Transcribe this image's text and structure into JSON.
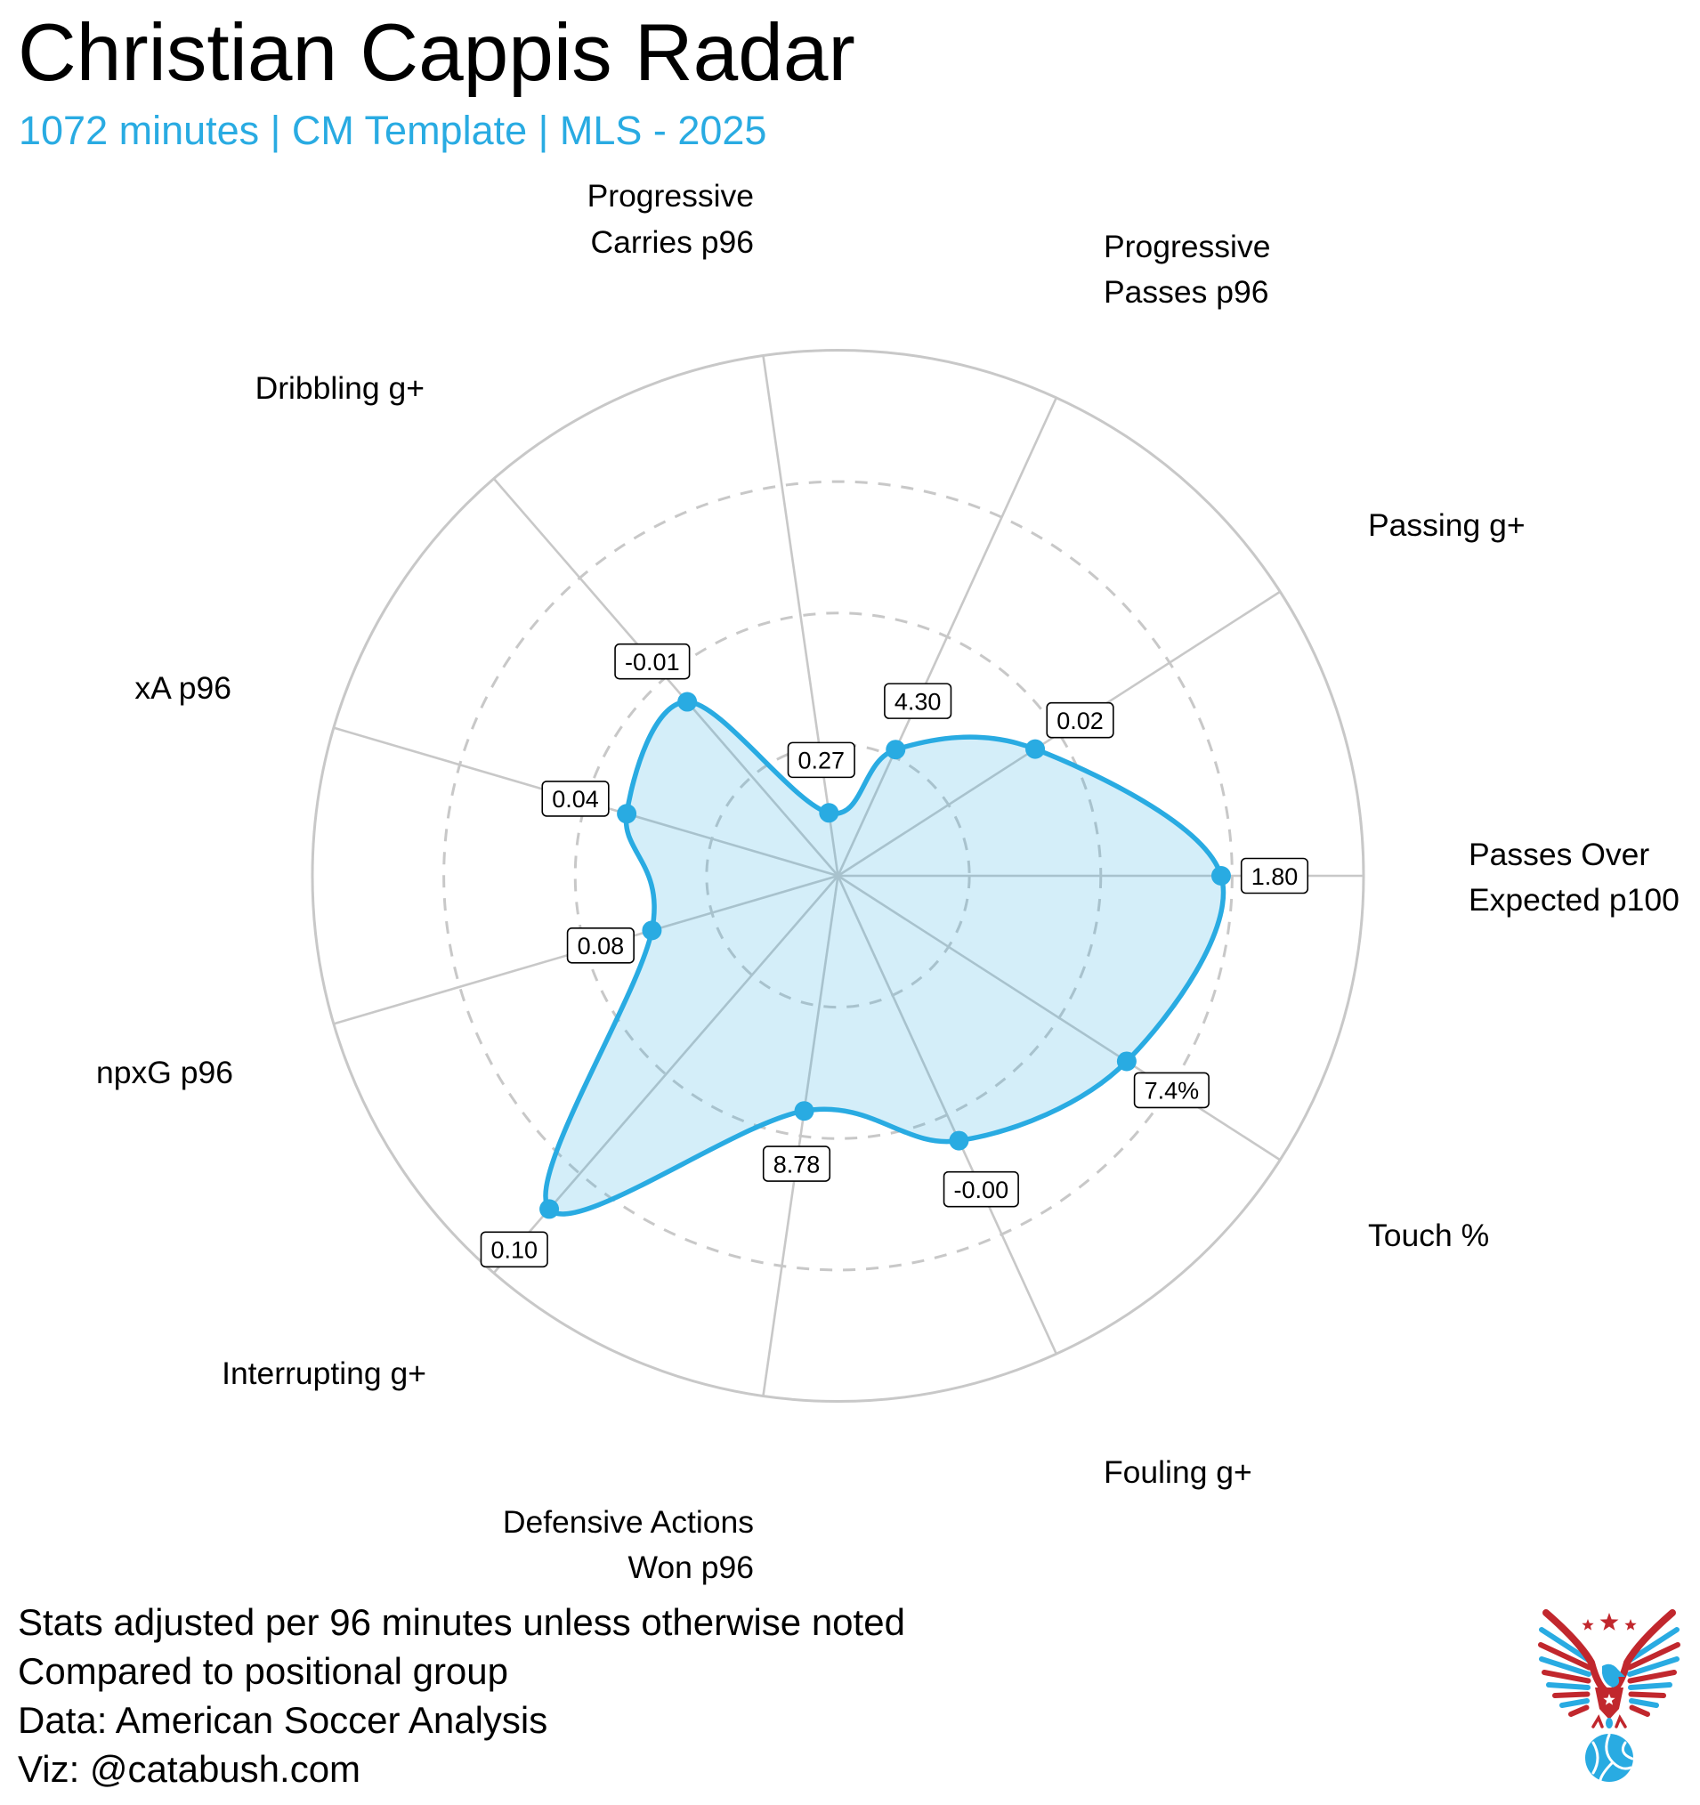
{
  "title": "Christian Cappis Radar",
  "subtitle": "1072 minutes | CM Template | MLS - 2025",
  "footer": [
    "Stats adjusted per 96 minutes unless otherwise noted",
    "Compared to positional group",
    "Data: American Soccer Analysis",
    "Viz: @catabush.com"
  ],
  "colors": {
    "accent": "#29ABE2",
    "fill": "#29ABE2",
    "grid": "#C8C8C8",
    "text": "#000000",
    "logo_red": "#C1272D",
    "logo_blue": "#29ABE2"
  },
  "logo": {
    "icon": "eagle-soccer-ball-logo"
  },
  "chart_data": {
    "type": "radar",
    "title": "Christian Cappis Radar",
    "subtitle": "1072 minutes | CM Template | MLS - 2025",
    "value_kind": "percentile vs positional group",
    "rlim": [
      0,
      100
    ],
    "grid_levels": [
      25,
      50,
      75,
      100
    ],
    "grid": true,
    "axes": [
      {
        "label": "Passes Over Expected p100",
        "label_lines": [
          "Passes Over",
          "Expected p100"
        ],
        "percentile": 72.9,
        "value_label": "1.80"
      },
      {
        "label": "Passing g+",
        "label_lines": [
          "Passing g+"
        ],
        "percentile": 44.6,
        "value_label": "0.02"
      },
      {
        "label": "Progressive Passes p96",
        "label_lines": [
          "Progressive",
          "Passes p96"
        ],
        "percentile": 26.4,
        "value_label": "4.30"
      },
      {
        "label": "Progressive Carries p96",
        "label_lines": [
          "Progressive",
          "Carries p96"
        ],
        "percentile": 12.1,
        "value_label": "0.27"
      },
      {
        "label": "Dribbling g+",
        "label_lines": [
          "Dribbling g+"
        ],
        "percentile": 43.8,
        "value_label": "-0.01"
      },
      {
        "label": "xA p96",
        "label_lines": [
          "xA p96"
        ],
        "percentile": 41.9,
        "value_label": "0.04"
      },
      {
        "label": "npxG p96",
        "label_lines": [
          "npxG p96"
        ],
        "percentile": 36.9,
        "value_label": "0.08"
      },
      {
        "label": "Interrupting g+",
        "label_lines": [
          "Interrupting g+"
        ],
        "percentile": 83.9,
        "value_label": "0.10"
      },
      {
        "label": "Defensive Actions Won p96",
        "label_lines": [
          "Defensive Actions",
          "Won p96"
        ],
        "percentile": 45.2,
        "value_label": "8.78"
      },
      {
        "label": "Fouling g+",
        "label_lines": [
          "Fouling g+"
        ],
        "percentile": 55.4,
        "value_label": "-0.00"
      },
      {
        "label": "Touch %",
        "label_lines": [
          "Touch %"
        ],
        "percentile": 65.3,
        "value_label": "7.4%"
      }
    ]
  }
}
